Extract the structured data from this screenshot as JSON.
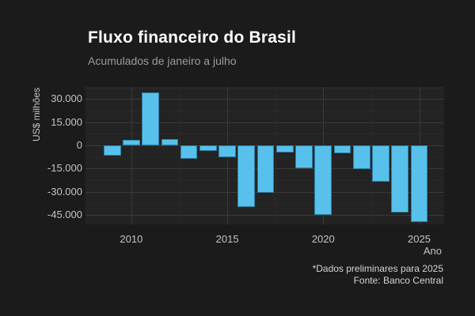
{
  "header": {
    "title": "Fluxo financeiro do Brasil",
    "subtitle": "Acumulados de janeiro a julho"
  },
  "footer": {
    "note": "*Dados preliminares para 2025",
    "source": "Fonte: Banco Central"
  },
  "colors": {
    "background": "#1b1b1b",
    "panel": "#232323",
    "bar_fill": "#57c1ec",
    "bar_border": "#2f7fa5",
    "grid_major": "#3a3a3a",
    "grid_minor": "#2a2a2a",
    "title_text": "#ffffff",
    "subtitle_text": "#9b9b9b",
    "axis_text": "#c4c4c4",
    "footer_text": "#d4d4d4"
  },
  "chart_data": {
    "type": "bar",
    "title": "Fluxo financeiro do Brasil",
    "subtitle": "Acumulados de janeiro a julho",
    "xlabel": "Ano",
    "ylabel": "US$ milhões",
    "categories": [
      2009,
      2010,
      2011,
      2012,
      2013,
      2014,
      2015,
      2016,
      2017,
      2018,
      2019,
      2020,
      2021,
      2022,
      2023,
      2024,
      2025
    ],
    "values": [
      -6800,
      3700,
      34300,
      4300,
      -8900,
      -3400,
      -7500,
      -39800,
      -30900,
      -4700,
      -14600,
      -45200,
      -4900,
      -15500,
      -23300,
      -43700,
      -49900
    ],
    "unit": "US$ milhões",
    "y_ticks": [
      {
        "value": 30000,
        "label": "30.000"
      },
      {
        "value": 15000,
        "label": "15.000"
      },
      {
        "value": 0,
        "label": "0"
      },
      {
        "value": -15000,
        "label": "-15.000"
      },
      {
        "value": -30000,
        "label": "-30.000"
      },
      {
        "value": -45000,
        "label": "-45.000"
      }
    ],
    "y_minor_ticks": [
      37500,
      22500,
      7500,
      -7500,
      -22500,
      -37500
    ],
    "x_ticks": [
      {
        "value": 2010,
        "label": "2010"
      },
      {
        "value": 2015,
        "label": "2015"
      },
      {
        "value": 2020,
        "label": "2020"
      },
      {
        "value": 2025,
        "label": "2025"
      }
    ],
    "x_minor_ticks": [
      2012.5,
      2017.5,
      2022.5
    ],
    "ylim": [
      -51200,
      37900
    ],
    "xlim": [
      2007.61,
      2026.3
    ],
    "bar_rel_width": 0.9,
    "grid": "major+minor",
    "legend": "none"
  }
}
